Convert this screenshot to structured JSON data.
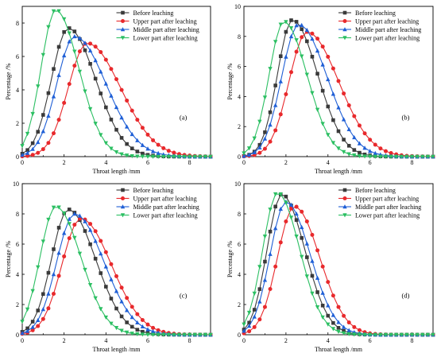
{
  "series_meta": [
    {
      "name": "Before leaching",
      "color": "#3a3a3a",
      "marker": "square"
    },
    {
      "name": "Upper part after leaching",
      "color": "#e8292c",
      "marker": "circle"
    },
    {
      "name": "Middle part after leaching",
      "color": "#1f5fd6",
      "marker": "triangle-up"
    },
    {
      "name": "Lower part after leaching",
      "color": "#2bbf62",
      "marker": "triangle-down"
    }
  ],
  "chart_data": [
    {
      "type": "line",
      "panel_label": "(a)",
      "xlabel": "Throat length /mm",
      "ylabel": "Percentage /%",
      "xlim": [
        0,
        9
      ],
      "ylim": [
        0,
        9
      ],
      "xticks": [
        0,
        2,
        4,
        6,
        8
      ],
      "yticks": [
        0,
        2,
        4,
        6,
        8
      ],
      "grid": false,
      "legend_position": "top-right",
      "peaks": [
        [
          2.2,
          7.7
        ],
        [
          3.1,
          6.8
        ],
        [
          2.5,
          7.2
        ],
        [
          1.6,
          8.8
        ]
      ],
      "sigma_left": [
        0.8,
        0.9,
        0.85,
        0.7
      ],
      "sigma_right": [
        1.3,
        1.6,
        1.5,
        1.1
      ]
    },
    {
      "type": "line",
      "panel_label": "(b)",
      "xlabel": "Throat length /mm",
      "ylabel": "Percentage /%",
      "xlim": [
        0,
        9
      ],
      "ylim": [
        0,
        10
      ],
      "xticks": [
        0,
        2,
        4,
        6,
        8
      ],
      "yticks": [
        0,
        2,
        4,
        6,
        8,
        10
      ],
      "grid": false,
      "legend_position": "top-right",
      "peaks": [
        [
          2.3,
          9.1
        ],
        [
          3.0,
          8.3
        ],
        [
          2.6,
          8.8
        ],
        [
          1.9,
          9.0
        ]
      ],
      "sigma_left": [
        0.7,
        0.85,
        0.8,
        0.7
      ],
      "sigma_right": [
        1.2,
        1.5,
        1.35,
        1.1
      ]
    },
    {
      "type": "line",
      "panel_label": "(c)",
      "xlabel": "Throat length /mm",
      "ylabel": "Percentage /%",
      "xlim": [
        0,
        9
      ],
      "ylim": [
        0,
        10
      ],
      "xticks": [
        0,
        2,
        4,
        6,
        8
      ],
      "yticks": [
        0,
        2,
        4,
        6,
        8,
        10
      ],
      "grid": false,
      "legend_position": "top-right",
      "peaks": [
        [
          2.2,
          8.3
        ],
        [
          2.8,
          7.7
        ],
        [
          2.5,
          8.0
        ],
        [
          1.6,
          8.5
        ]
      ],
      "sigma_left": [
        0.8,
        0.9,
        0.85,
        0.75
      ],
      "sigma_right": [
        1.3,
        1.45,
        1.4,
        1.2
      ]
    },
    {
      "type": "line",
      "panel_label": "(d)",
      "xlabel": "Throat length /mm",
      "ylabel": "Percentage /%",
      "xlim": [
        0,
        9
      ],
      "ylim": [
        0,
        10
      ],
      "xticks": [
        0,
        2,
        4,
        6,
        8
      ],
      "yticks": [
        0,
        2,
        4,
        6,
        8,
        10
      ],
      "grid": false,
      "legend_position": "top-right",
      "peaks": [
        [
          1.8,
          9.3
        ],
        [
          2.4,
          8.5
        ],
        [
          2.0,
          8.8
        ],
        [
          1.6,
          9.4
        ]
      ],
      "sigma_left": [
        0.7,
        0.8,
        0.75,
        0.7
      ],
      "sigma_right": [
        1.1,
        1.2,
        1.15,
        1.05
      ]
    }
  ]
}
